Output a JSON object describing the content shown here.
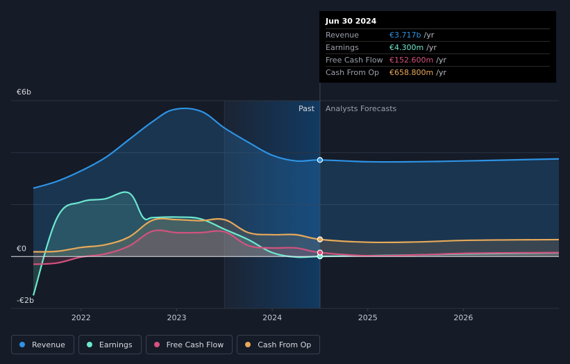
{
  "colors": {
    "revenue": "#2e93e4",
    "earnings": "#6ee7cf",
    "fcf": "#d3527e",
    "cfo": "#e8a95a"
  },
  "tooltip": {
    "date": "Jun 30 2024",
    "rows": [
      {
        "label": "Revenue",
        "value": "€3.717b",
        "unit": "/yr"
      },
      {
        "label": "Earnings",
        "value": "€4.300m",
        "unit": "/yr"
      },
      {
        "label": "Free Cash Flow",
        "value": "€152.600m",
        "unit": "/yr"
      },
      {
        "label": "Cash From Op",
        "value": "€658.800m",
        "unit": "/yr"
      }
    ]
  },
  "legend": [
    {
      "label": "Revenue"
    },
    {
      "label": "Earnings"
    },
    {
      "label": "Free Cash Flow"
    },
    {
      "label": "Cash From Op"
    }
  ],
  "chart_data": {
    "type": "line",
    "y_unit": "€b",
    "ylim": [
      -2,
      6
    ],
    "y_tick_labels": [
      "€6b",
      "€0",
      "-€2b"
    ],
    "y_ticks": [
      6,
      0,
      -2
    ],
    "xlim": [
      2021.5,
      2027.0
    ],
    "x_tick_labels": [
      "2022",
      "2023",
      "2024",
      "2025",
      "2026"
    ],
    "x_ticks": [
      2022,
      2023,
      2024,
      2025,
      2026
    ],
    "divider_x": 2024.5,
    "forecast_shade_start": 2023.5,
    "past_label": "Past",
    "forecast_label": "Analysts Forecasts",
    "series": [
      {
        "name": "Revenue",
        "key": "revenue",
        "x": [
          2021.5,
          2021.75,
          2022.0,
          2022.25,
          2022.5,
          2022.75,
          2022.97,
          2023.25,
          2023.5,
          2023.75,
          2024.0,
          2024.25,
          2024.5,
          2025.0,
          2025.5,
          2026.0,
          2026.5,
          2027.0
        ],
        "y": [
          2.63,
          2.9,
          3.3,
          3.8,
          4.5,
          5.2,
          5.66,
          5.6,
          4.95,
          4.4,
          3.9,
          3.68,
          3.717,
          3.65,
          3.65,
          3.68,
          3.72,
          3.76
        ]
      },
      {
        "name": "Earnings",
        "key": "earnings",
        "x": [
          2021.5,
          2021.75,
          2022.0,
          2022.25,
          2022.5,
          2022.65,
          2022.75,
          2023.0,
          2023.25,
          2023.5,
          2023.75,
          2024.0,
          2024.25,
          2024.5,
          2025.0,
          2025.5,
          2026.0,
          2026.5,
          2027.0
        ],
        "y": [
          -1.5,
          1.5,
          2.1,
          2.22,
          2.45,
          1.5,
          1.5,
          1.52,
          1.45,
          1.05,
          0.65,
          0.15,
          -0.02,
          0.0043,
          0.03,
          0.06,
          0.1,
          0.12,
          0.14
        ]
      },
      {
        "name": "Free Cash Flow",
        "key": "fcf",
        "x": [
          2021.5,
          2021.75,
          2022.0,
          2022.25,
          2022.5,
          2022.75,
          2023.0,
          2023.25,
          2023.5,
          2023.75,
          2024.0,
          2024.25,
          2024.5,
          2025.0,
          2025.5,
          2026.0,
          2026.5,
          2027.0
        ],
        "y": [
          -0.3,
          -0.25,
          -0.02,
          0.1,
          0.4,
          0.98,
          0.92,
          0.92,
          0.95,
          0.42,
          0.33,
          0.33,
          0.1526,
          0.03,
          0.06,
          0.12,
          0.14,
          0.15
        ]
      },
      {
        "name": "Cash From Op",
        "key": "cfo",
        "x": [
          2021.5,
          2021.75,
          2022.0,
          2022.25,
          2022.5,
          2022.75,
          2023.0,
          2023.25,
          2023.5,
          2023.75,
          2024.0,
          2024.25,
          2024.5,
          2025.0,
          2025.5,
          2026.0,
          2026.5,
          2027.0
        ],
        "y": [
          0.18,
          0.2,
          0.35,
          0.45,
          0.75,
          1.4,
          1.42,
          1.38,
          1.42,
          0.92,
          0.84,
          0.84,
          0.6588,
          0.55,
          0.56,
          0.62,
          0.64,
          0.65
        ]
      }
    ]
  }
}
